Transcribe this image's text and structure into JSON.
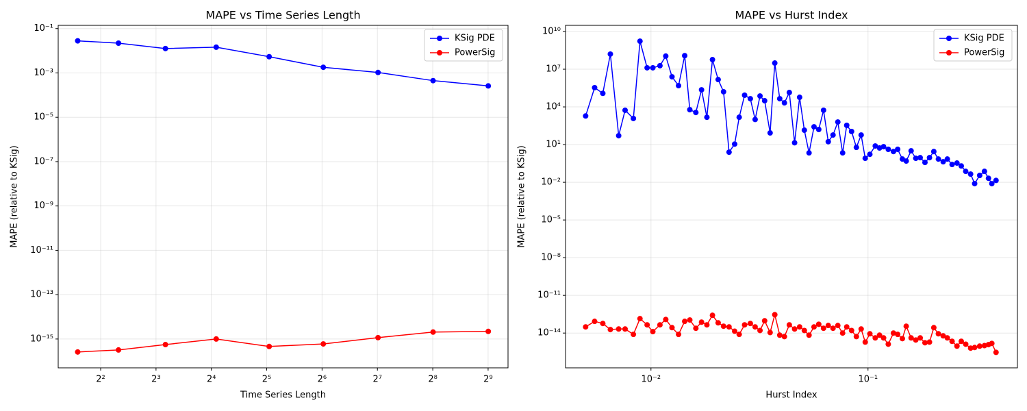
{
  "chart_data": [
    {
      "type": "line",
      "title": "MAPE vs Time Series Length",
      "xlabel": "Time Series Length",
      "ylabel": "MAPE (relative to KSig)",
      "xscale": "log",
      "xbase": 2,
      "yscale": "log",
      "grid": true,
      "legend": "upper right",
      "xlim": [
        2.35,
        657
      ],
      "ylim": [
        5e-17,
        0.14
      ],
      "xticks": [
        {
          "value": 4,
          "label": "2²"
        },
        {
          "value": 8,
          "label": "2³"
        },
        {
          "value": 16,
          "label": "2⁴"
        },
        {
          "value": 32,
          "label": "2⁵"
        },
        {
          "value": 64,
          "label": "2⁶"
        },
        {
          "value": 128,
          "label": "2⁷"
        },
        {
          "value": 256,
          "label": "2⁸"
        },
        {
          "value": 512,
          "label": "2⁹"
        }
      ],
      "yticks": [
        {
          "value": 0.1,
          "label": "10⁻¹"
        },
        {
          "value": 0.001,
          "label": "10⁻³"
        },
        {
          "value": 1e-05,
          "label": "10⁻⁵"
        },
        {
          "value": 1e-07,
          "label": "10⁻⁷"
        },
        {
          "value": 1e-09,
          "label": "10⁻⁹"
        },
        {
          "value": 1e-11,
          "label": "10⁻¹¹"
        },
        {
          "value": 1e-13,
          "label": "10⁻¹³"
        },
        {
          "value": 1e-15,
          "label": "10⁻¹⁵"
        }
      ],
      "x": [
        3,
        5,
        9,
        17,
        33,
        65,
        129,
        257,
        513
      ],
      "series": [
        {
          "name": "KSig PDE",
          "color": "#0000ff",
          "values": [
            0.028,
            0.022,
            0.0126,
            0.0145,
            0.0054,
            0.0018,
            0.00105,
            0.00045,
            0.00026
          ]
        },
        {
          "name": "PowerSig",
          "color": "#ff0000",
          "values": [
            2.6e-16,
            3.2e-16,
            5.6e-16,
            1e-15,
            4.6e-16,
            6e-16,
            1.15e-15,
            2.05e-15,
            2.2e-15
          ]
        }
      ]
    },
    {
      "type": "line",
      "title": "MAPE vs Hurst Index",
      "xlabel": "Hurst Index",
      "ylabel": "MAPE (relative to KSig)",
      "xscale": "log",
      "xbase": 10,
      "yscale": "log",
      "grid": true,
      "legend": "upper right",
      "xlim": [
        0.00404,
        0.488
      ],
      "ylim": [
        1.7e-17,
        31000000000.0
      ],
      "xticks": [
        {
          "value": 0.01,
          "label": "10⁻²"
        },
        {
          "value": 0.1,
          "label": "10⁻¹"
        }
      ],
      "yticks": [
        {
          "value": 10000000000.0,
          "label": "10¹⁰"
        },
        {
          "value": 10000000.0,
          "label": "10⁷"
        },
        {
          "value": 10000.0,
          "label": "10⁴"
        },
        {
          "value": 10,
          "label": "10¹"
        },
        {
          "value": 0.01,
          "label": "10⁻²"
        },
        {
          "value": 1e-05,
          "label": "10⁻⁵"
        },
        {
          "value": 1e-08,
          "label": "10⁻⁸"
        },
        {
          "value": 1e-11,
          "label": "10⁻¹¹"
        },
        {
          "value": 1e-14,
          "label": "10⁻¹⁴"
        }
      ],
      "x": [
        0.005,
        0.0055,
        0.006,
        0.0065,
        0.0071,
        0.0076,
        0.0083,
        0.0089,
        0.0096,
        0.0102,
        0.011,
        0.0117,
        0.0125,
        0.0134,
        0.0143,
        0.0151,
        0.0161,
        0.0171,
        0.0181,
        0.0192,
        0.0204,
        0.0216,
        0.0229,
        0.0243,
        0.0255,
        0.027,
        0.0287,
        0.0302,
        0.0318,
        0.0334,
        0.0354,
        0.0372,
        0.0392,
        0.0412,
        0.0434,
        0.0459,
        0.0484,
        0.0509,
        0.0535,
        0.0564,
        0.0593,
        0.0624,
        0.0656,
        0.069,
        0.0726,
        0.0764,
        0.0798,
        0.084,
        0.0884,
        0.093,
        0.0971,
        0.102,
        0.108,
        0.113,
        0.118,
        0.124,
        0.131,
        0.137,
        0.144,
        0.15,
        0.158,
        0.166,
        0.174,
        0.183,
        0.192,
        0.201,
        0.211,
        0.222,
        0.232,
        0.244,
        0.257,
        0.269,
        0.282,
        0.297,
        0.31,
        0.327,
        0.344,
        0.359,
        0.372,
        0.389
      ],
      "series": [
        {
          "name": "KSig PDE",
          "color": "#0000ff",
          "values": [
            1900.0,
            340000.0,
            120000.0,
            160000000.0,
            51,
            5400.0,
            1200.0,
            1700000000.0,
            13000000.0,
            13000000.0,
            19000000.0,
            110000000.0,
            2500000.0,
            490000.0,
            120000000.0,
            6000.0,
            3600.0,
            230000.0,
            1500.0,
            58000000.0,
            1500000.0,
            160000.0,
            2.5,
            11,
            1500.0,
            85000.0,
            45000.0,
            1000.0,
            74000.0,
            31000.0,
            85,
            31000000.0,
            45000.0,
            21000.0,
            140000.0,
            14,
            58000.0,
            140,
            2.2,
            260,
            160,
            5400.0,
            17,
            58,
            630,
            2.2,
            340,
            110,
            6.0,
            58,
            0.81,
            1.7,
            7.8,
            5.4,
            6.8,
            4.2,
            2.8,
            4.2,
            0.71,
            0.49,
            3.2,
            0.81,
            0.91,
            0.38,
            0.91,
            2.8,
            0.71,
            0.43,
            0.71,
            0.26,
            0.34,
            0.2,
            0.074,
            0.045,
            0.0078,
            0.035,
            0.074,
            0.021,
            0.0078,
            0.014
          ]
        },
        {
          "name": "PowerSig",
          "color": "#ff0000",
          "values": [
            3.1e-14,
            8.5e-14,
            5.8e-14,
            1.9e-14,
            2.1e-14,
            2.1e-14,
            7.8e-15,
            1.4e-13,
            4.5e-14,
            1.3e-14,
            4.5e-14,
            1.2e-13,
            2.7e-14,
            7.8e-15,
            8.5e-14,
            1.1e-13,
            2.4e-14,
            7.4e-14,
            4.5e-14,
            2.6e-13,
            6.5e-14,
            3.5e-14,
            3.1e-14,
            1.4e-14,
            7.8e-15,
            4.5e-14,
            5.8e-14,
            3.1e-14,
            1.6e-14,
            9.5e-14,
            1.1e-14,
            2.9e-13,
            6.8e-15,
            5.2e-15,
            4.5e-14,
            2.1e-14,
            3.1e-14,
            1.6e-14,
            6.8e-15,
            3.1e-14,
            5e-14,
            2.4e-14,
            4e-14,
            2.4e-14,
            4e-14,
            1e-14,
            3.1e-14,
            1.6e-14,
            5.2e-15,
            2.1e-14,
            1.9e-15,
            8.7e-15,
            4.1e-15,
            6.8e-15,
            4.1e-15,
            1.3e-15,
            1e-14,
            7.8e-15,
            3.6e-15,
            3.5e-14,
            4.1e-15,
            2.8e-15,
            4.1e-15,
            1.7e-15,
            1.9e-15,
            2.7e-14,
            8.7e-15,
            6e-15,
            4.1e-15,
            2.2e-15,
            9.1e-16,
            2.2e-15,
            1.3e-15,
            6.3e-16,
            7.1e-16,
            9.1e-16,
            1e-15,
            1.2e-15,
            1.5e-15,
            2.9e-16
          ]
        }
      ]
    }
  ]
}
